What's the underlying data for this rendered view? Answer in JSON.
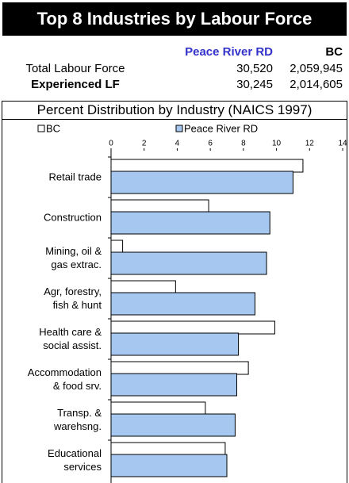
{
  "header": {
    "title": "Top 8 Industries by Labour Force"
  },
  "table": {
    "columns": [
      "Peace River RD",
      "BC"
    ],
    "rows": [
      [
        "Total Labour Force",
        "30,520",
        "2,059,945"
      ],
      [
        "Experienced LF",
        "30,245",
        "2,014,605"
      ]
    ]
  },
  "chart_data": {
    "type": "bar",
    "orientation": "horizontal",
    "title": "Percent Distribution by Industry (NAICS 1997)",
    "categories": [
      "Retail trade",
      "Construction",
      "Mining, oil &\ngas extrac.",
      "Agr, forestry,\nfish & hunt",
      "Health care &\nsocial assist.",
      "Accommodation\n& food srv.",
      "Transp. &\nwarehsng.",
      "Educational\nservices"
    ],
    "series": [
      {
        "name": "BC",
        "color": "#ffffff",
        "values": [
          11.6,
          5.9,
          0.7,
          3.9,
          9.9,
          8.3,
          5.7,
          6.9
        ]
      },
      {
        "name": "Peace River RD",
        "color": "#a6c8f0",
        "values": [
          11.0,
          9.6,
          9.4,
          8.7,
          7.7,
          7.6,
          7.5,
          7.0
        ]
      }
    ],
    "xlim": [
      0,
      14
    ],
    "xticks": [
      0,
      2,
      4,
      6,
      8,
      10,
      12,
      14
    ]
  }
}
